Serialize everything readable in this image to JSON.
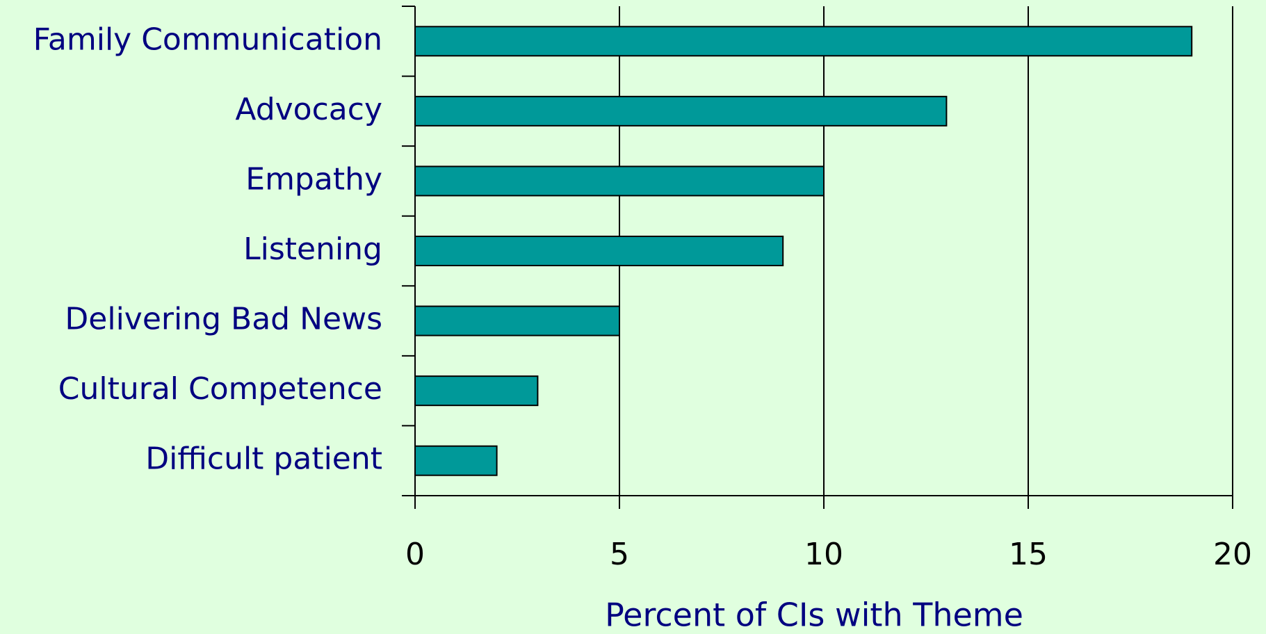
{
  "chart_data": {
    "type": "hbar",
    "categories": [
      "Family Communication",
      "Advocacy",
      "Empathy",
      "Listening",
      "Delivering Bad News",
      "Cultural Competence",
      "Difficult patient"
    ],
    "values": [
      19,
      13,
      10,
      9,
      5,
      3,
      2
    ],
    "color": "#009999",
    "xlabel": "Percent of CIs with Theme",
    "xlim": [
      0,
      20
    ],
    "xticks": [
      0,
      5,
      10,
      15,
      20
    ],
    "grid": true
  }
}
